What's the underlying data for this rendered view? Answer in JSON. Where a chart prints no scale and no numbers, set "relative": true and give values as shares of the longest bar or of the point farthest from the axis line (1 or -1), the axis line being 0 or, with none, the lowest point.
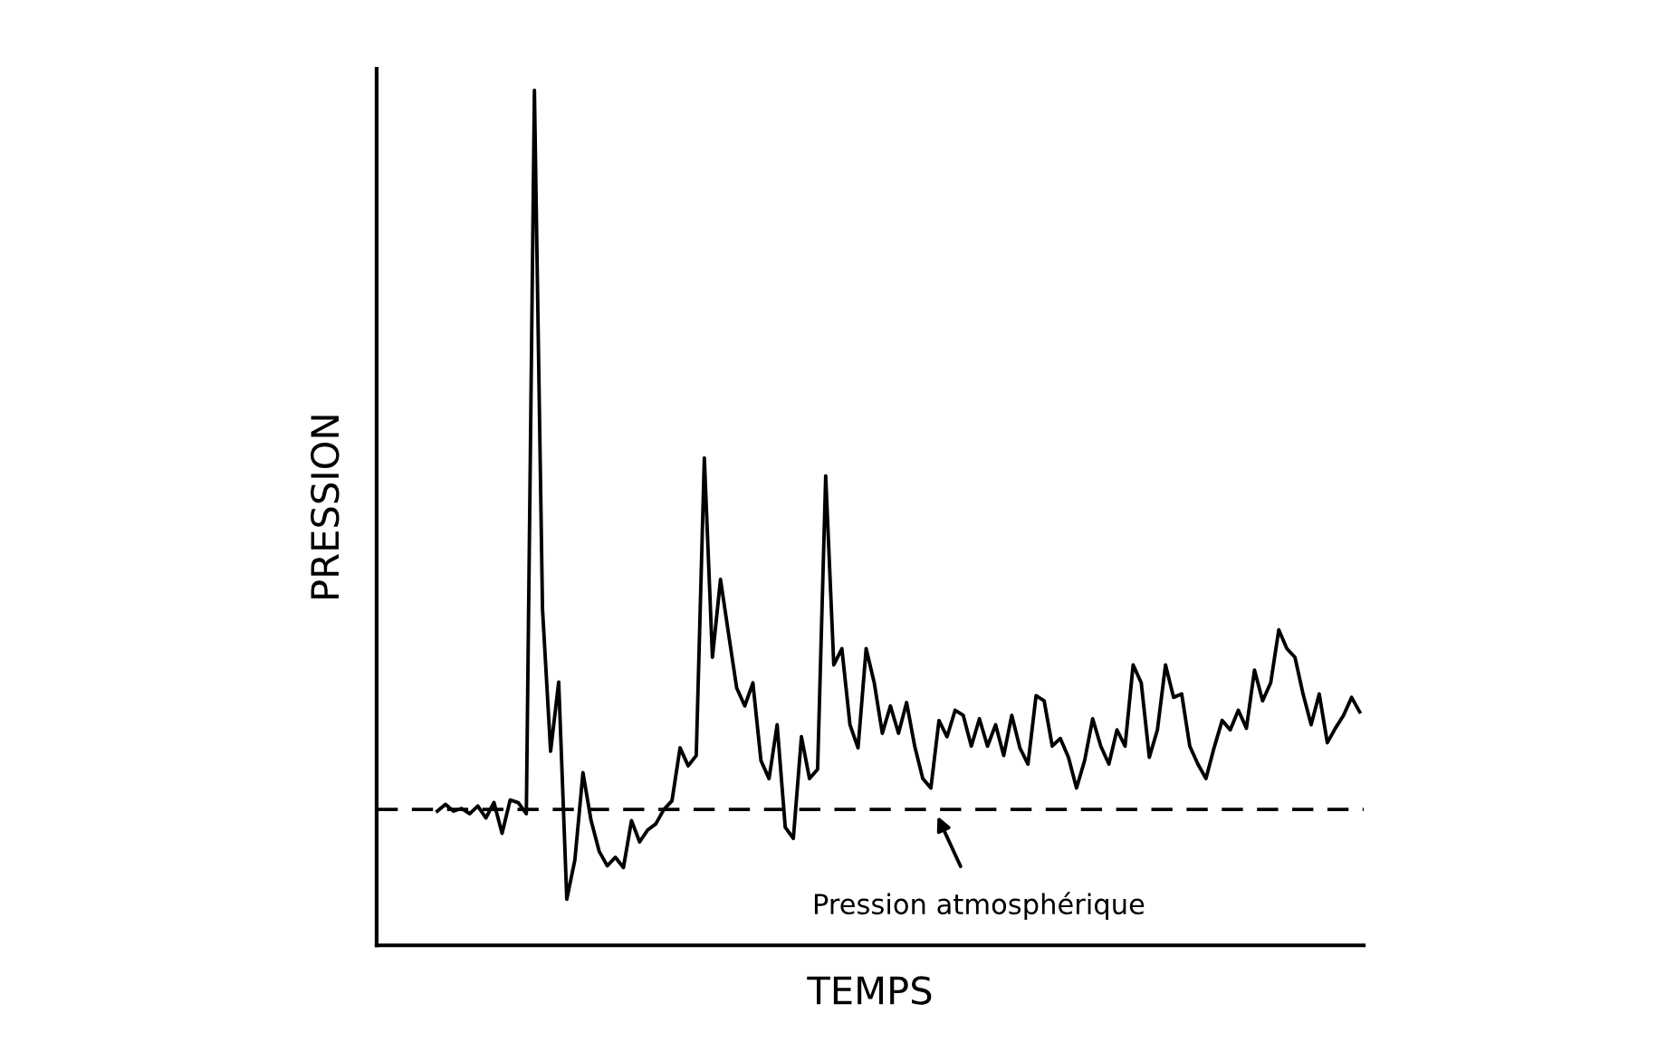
{
  "chart_data": {
    "type": "line",
    "relative": true,
    "xlabel": "TEMPS",
    "ylabel": "PRESSION",
    "tick_labels": false,
    "marker": "none",
    "line_style": "solid",
    "categories": [
      null,
      null,
      null,
      null,
      null,
      null,
      null,
      null,
      null,
      null,
      null,
      null,
      null,
      null,
      null,
      null,
      null,
      null,
      null,
      null,
      null,
      null,
      null,
      null,
      null,
      null,
      null,
      null,
      null,
      null,
      null,
      null,
      null,
      null,
      null,
      null,
      null,
      null,
      null,
      null,
      null,
      null,
      null,
      null,
      null,
      null,
      null,
      null,
      null,
      null,
      null,
      null,
      null,
      null,
      null,
      null,
      null,
      null,
      null,
      null,
      null,
      null,
      null,
      null,
      null,
      null,
      null,
      null,
      null,
      null,
      null,
      null,
      null,
      null,
      null,
      null,
      null,
      null,
      null,
      null,
      null,
      null,
      null,
      null,
      null,
      null,
      null,
      null,
      null,
      null,
      null,
      null,
      null,
      null,
      null,
      null,
      null,
      null,
      null,
      null,
      null,
      null,
      null,
      null,
      null,
      null,
      null,
      null,
      null,
      null,
      null,
      null,
      null,
      null,
      null,
      null,
      null,
      null,
      null,
      null,
      null,
      null
    ],
    "series": [
      {
        "color": "#000000",
        "values": [
          null,
          null,
          null,
          null,
          null,
          null,
          null,
          0.157,
          0.165,
          0.157,
          0.16,
          0.154,
          0.163,
          0.149,
          0.167,
          0.131,
          0.17,
          0.167,
          0.154,
          1.0,
          0.393,
          0.227,
          0.308,
          0.054,
          0.1,
          0.202,
          0.146,
          0.11,
          0.093,
          0.103,
          0.091,
          0.146,
          0.121,
          0.135,
          0.142,
          0.159,
          0.169,
          0.231,
          0.21,
          0.222,
          0.57,
          0.337,
          0.428,
          0.364,
          0.301,
          0.28,
          0.307,
          0.216,
          0.195,
          0.258,
          0.138,
          0.125,
          0.244,
          0.195,
          0.206,
          0.549,
          0.328,
          0.347,
          0.258,
          0.231,
          0.347,
          0.307,
          0.248,
          0.28,
          0.248,
          0.284,
          0.233,
          0.195,
          0.184,
          0.263,
          0.244,
          0.275,
          0.269,
          0.233,
          0.265,
          0.233,
          0.258,
          0.222,
          0.269,
          0.231,
          0.212,
          0.292,
          0.286,
          0.233,
          0.242,
          0.22,
          0.184,
          0.216,
          0.265,
          0.233,
          0.212,
          0.252,
          0.233,
          0.328,
          0.307,
          0.22,
          0.252,
          0.328,
          0.29,
          0.294,
          0.233,
          0.212,
          0.195,
          0.231,
          0.263,
          0.252,
          0.275,
          0.254,
          0.322,
          0.286,
          0.307,
          0.369,
          0.347,
          0.337,
          0.294,
          0.258,
          0.294,
          0.237,
          0.254,
          0.269,
          0.29,
          0.273
        ]
      }
    ],
    "ref_lines": [
      {
        "axis": "y",
        "value": 0.159,
        "color": "#000000",
        "line_style": "dashed"
      }
    ],
    "annotations": [
      "Pression atmosphérique"
    ]
  }
}
